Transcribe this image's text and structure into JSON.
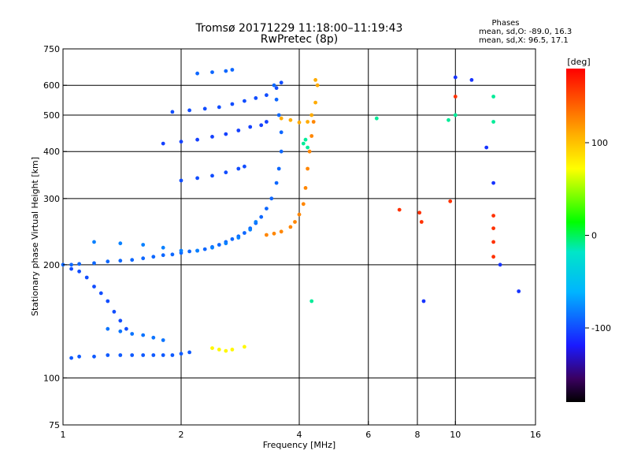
{
  "chart_data": {
    "type": "scatter",
    "title": "Tromsø 20171229 11:18:00–11:19:43",
    "subtitle": "RwPretec (8p)",
    "legend_heading": "Phases",
    "stats": [
      "mean, sd,O: -89.0, 16.3",
      "mean, sd,X:  96.5, 17.1"
    ],
    "xlabel": "Frequency [MHz]",
    "ylabel": "Stationary phase Virtual Height [km]",
    "x_scale": "log",
    "y_scale": "log",
    "xlim": [
      1,
      16
    ],
    "ylim": [
      75,
      750
    ],
    "x_ticks": [
      1,
      2,
      4,
      6,
      8,
      10,
      16
    ],
    "x_tick_labels": [
      "1",
      "2",
      "4",
      "6",
      "8",
      "10",
      "16"
    ],
    "y_ticks": [
      75,
      100,
      200,
      300,
      400,
      500,
      600,
      750
    ],
    "y_tick_labels": [
      "75",
      "100",
      "200",
      "300",
      "400",
      "500",
      "600",
      "750"
    ],
    "x_gridlines": [
      2,
      4,
      6,
      8,
      10
    ],
    "y_gridlines": [
      100,
      200,
      300,
      400,
      500,
      600
    ],
    "grid": true,
    "colorbar": {
      "label": "[deg]",
      "range": [
        -180,
        180
      ],
      "ticks": [
        100,
        0,
        -100
      ],
      "tick_labels": [
        "100",
        "0",
        "-100"
      ]
    },
    "series": [
      {
        "phase": -90,
        "points": [
          [
            1.0,
            200
          ],
          [
            1.05,
            200
          ],
          [
            1.1,
            201
          ],
          [
            1.2,
            202
          ],
          [
            1.3,
            204
          ],
          [
            1.4,
            205
          ],
          [
            1.5,
            206
          ],
          [
            1.6,
            208
          ],
          [
            1.7,
            210
          ],
          [
            1.8,
            212
          ],
          [
            1.9,
            213
          ],
          [
            2.0,
            215
          ],
          [
            2.1,
            217
          ],
          [
            2.2,
            218
          ],
          [
            2.3,
            220
          ],
          [
            2.4,
            223
          ],
          [
            2.5,
            226
          ],
          [
            2.6,
            230
          ],
          [
            2.7,
            234
          ],
          [
            2.8,
            238
          ],
          [
            2.9,
            243
          ],
          [
            3.0,
            250
          ],
          [
            3.1,
            258
          ],
          [
            3.2,
            268
          ],
          [
            3.3,
            282
          ],
          [
            3.4,
            300
          ],
          [
            3.5,
            330
          ],
          [
            3.55,
            360
          ],
          [
            3.6,
            400
          ],
          [
            3.6,
            450
          ],
          [
            3.55,
            500
          ],
          [
            3.5,
            550
          ],
          [
            3.45,
            600
          ]
        ]
      },
      {
        "phase": -100,
        "points": [
          [
            1.05,
            195
          ],
          [
            1.1,
            192
          ],
          [
            1.15,
            185
          ],
          [
            1.2,
            175
          ],
          [
            1.25,
            168
          ],
          [
            1.3,
            160
          ],
          [
            1.35,
            150
          ],
          [
            1.4,
            142
          ],
          [
            1.45,
            135
          ]
        ]
      },
      {
        "phase": -95,
        "points": [
          [
            1.05,
            113
          ],
          [
            1.1,
            114
          ],
          [
            1.2,
            114
          ],
          [
            1.3,
            115
          ],
          [
            1.4,
            115
          ],
          [
            1.5,
            115
          ],
          [
            1.6,
            115
          ],
          [
            1.7,
            115
          ],
          [
            1.8,
            115
          ],
          [
            1.9,
            115
          ],
          [
            2.0,
            116
          ],
          [
            2.1,
            117
          ]
        ]
      },
      {
        "phase": -85,
        "points": [
          [
            1.3,
            135
          ],
          [
            1.4,
            133
          ],
          [
            1.5,
            131
          ],
          [
            1.6,
            130
          ],
          [
            1.7,
            128
          ],
          [
            1.8,
            126
          ]
        ]
      },
      {
        "phase": -80,
        "points": [
          [
            1.2,
            230
          ],
          [
            1.4,
            228
          ],
          [
            1.6,
            226
          ],
          [
            1.8,
            222
          ],
          [
            2.0,
            218
          ],
          [
            2.2,
            218
          ],
          [
            2.4,
            222
          ],
          [
            2.6,
            228
          ],
          [
            2.8,
            236
          ],
          [
            3.0,
            248
          ],
          [
            3.1,
            260
          ]
        ]
      },
      {
        "phase": 125,
        "points": [
          [
            3.3,
            240
          ],
          [
            3.45,
            242
          ],
          [
            3.6,
            245
          ],
          [
            3.8,
            252
          ],
          [
            3.9,
            260
          ],
          [
            4.0,
            272
          ],
          [
            4.1,
            290
          ],
          [
            4.15,
            320
          ],
          [
            4.2,
            360
          ],
          [
            4.25,
            400
          ],
          [
            4.3,
            440
          ],
          [
            4.35,
            480
          ]
        ]
      },
      {
        "phase": -100,
        "points": [
          [
            2.0,
            335
          ],
          [
            2.2,
            340
          ],
          [
            2.4,
            345
          ],
          [
            2.6,
            352
          ],
          [
            2.8,
            360
          ],
          [
            2.9,
            365
          ]
        ]
      },
      {
        "phase": -105,
        "points": [
          [
            1.8,
            420
          ],
          [
            2.0,
            425
          ],
          [
            2.2,
            430
          ],
          [
            2.4,
            438
          ],
          [
            2.6,
            445
          ],
          [
            2.8,
            455
          ],
          [
            3.0,
            465
          ],
          [
            3.2,
            470
          ],
          [
            3.3,
            480
          ]
        ]
      },
      {
        "phase": -100,
        "points": [
          [
            1.9,
            510
          ],
          [
            2.1,
            515
          ],
          [
            2.3,
            520
          ],
          [
            2.5,
            525
          ],
          [
            2.7,
            535
          ],
          [
            2.9,
            545
          ],
          [
            3.1,
            555
          ],
          [
            3.3,
            565
          ],
          [
            3.5,
            590
          ],
          [
            3.6,
            610
          ]
        ]
      },
      {
        "phase": -90,
        "points": [
          [
            2.2,
            645
          ],
          [
            2.4,
            650
          ],
          [
            2.6,
            655
          ],
          [
            2.7,
            660
          ]
        ]
      },
      {
        "phase": 110,
        "points": [
          [
            3.6,
            490
          ],
          [
            3.8,
            485
          ],
          [
            4.0,
            478
          ],
          [
            4.2,
            480
          ],
          [
            4.3,
            500
          ],
          [
            4.4,
            540
          ],
          [
            4.45,
            600
          ],
          [
            4.4,
            620
          ]
        ]
      },
      {
        "phase": 75,
        "points": [
          [
            2.4,
            120
          ],
          [
            2.5,
            119
          ],
          [
            2.6,
            118
          ],
          [
            2.7,
            119
          ],
          [
            2.9,
            121
          ]
        ]
      },
      {
        "phase": -10,
        "points": [
          [
            4.1,
            420
          ],
          [
            4.15,
            430
          ],
          [
            4.2,
            410
          ],
          [
            4.3,
            160
          ],
          [
            6.3,
            490
          ],
          [
            9.6,
            485
          ],
          [
            10.0,
            500
          ],
          [
            12.5,
            560
          ],
          [
            12.5,
            480
          ]
        ]
      },
      {
        "phase": 160,
        "points": [
          [
            7.2,
            280
          ],
          [
            8.1,
            275
          ],
          [
            8.2,
            260
          ],
          [
            9.7,
            295
          ],
          [
            10.0,
            560
          ],
          [
            12.5,
            270
          ],
          [
            12.5,
            250
          ],
          [
            12.5,
            230
          ],
          [
            12.5,
            210
          ]
        ]
      },
      {
        "phase": -110,
        "points": [
          [
            8.3,
            160
          ],
          [
            10.0,
            630
          ],
          [
            11.0,
            620
          ],
          [
            12.0,
            410
          ],
          [
            12.5,
            330
          ],
          [
            13.0,
            200
          ],
          [
            14.5,
            170
          ]
        ]
      }
    ]
  }
}
